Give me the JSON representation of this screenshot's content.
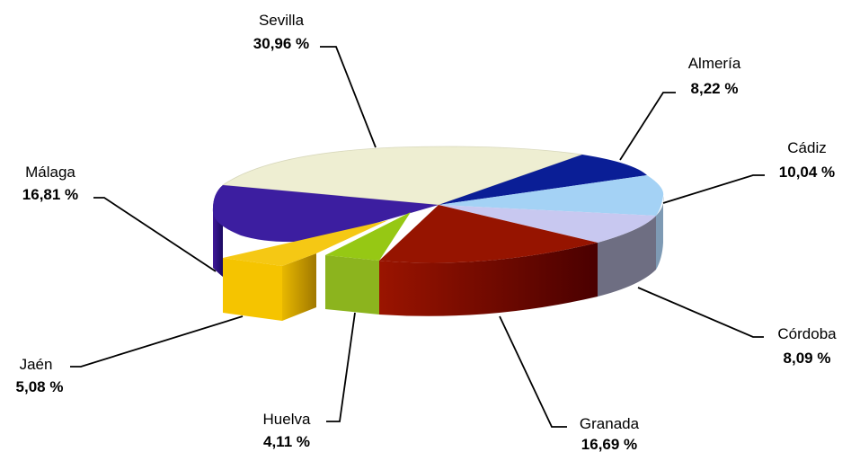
{
  "chart_data": {
    "type": "pie",
    "variant": "3d-exploded",
    "slices": [
      {
        "name": "Sevilla",
        "value": 30.96,
        "label": "30,96 %",
        "color": "#EEEED2",
        "exploded": false
      },
      {
        "name": "Almería",
        "value": 8.22,
        "label": "8,22 %",
        "color": "#0A1E96",
        "exploded": false
      },
      {
        "name": "Cádiz",
        "value": 10.04,
        "label": "10,04 %",
        "color": "#A4D2F5",
        "exploded": false
      },
      {
        "name": "Córdoba",
        "value": 8.09,
        "label": "8,09 %",
        "color": "#C8C8F0",
        "exploded": false
      },
      {
        "name": "Granada",
        "value": 16.69,
        "label": "16,69 %",
        "color": "#961400",
        "exploded": false
      },
      {
        "name": "Huelva",
        "value": 4.11,
        "label": "4,11 %",
        "color": "#96C814",
        "exploded": true
      },
      {
        "name": "Jaén",
        "value": 5.08,
        "label": "5,08 %",
        "color": "#F5C814",
        "exploded": true
      },
      {
        "name": "Málaga",
        "value": 16.81,
        "label": "16,81 %",
        "color": "#3C1EA0",
        "exploded": false
      }
    ]
  }
}
